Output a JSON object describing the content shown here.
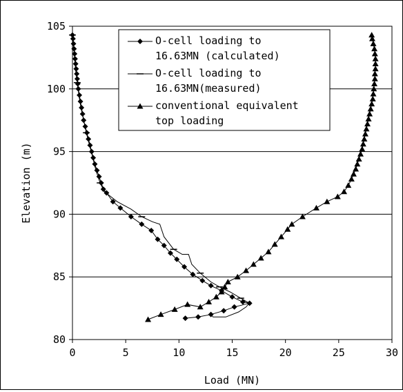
{
  "chart_data": {
    "type": "line",
    "xlabel": "Load (MN)",
    "ylabel": "Elevation (m)",
    "xlim": [
      0,
      30
    ],
    "ylim": [
      80,
      105
    ],
    "xticks": [
      "0",
      "5",
      "10",
      "15",
      "20",
      "25",
      "30"
    ],
    "yticks": [
      "80",
      "85",
      "90",
      "95",
      "100",
      "105"
    ],
    "grid": "horizontal",
    "legend_position": "top-center",
    "series": [
      {
        "name_lines": [
          "O-cell loading to",
          "16.63MN (calculated)"
        ],
        "marker": "diamond",
        "points": [
          [
            0.0,
            104.3
          ],
          [
            0.05,
            104.0
          ],
          [
            0.1,
            103.6
          ],
          [
            0.15,
            103.2
          ],
          [
            0.2,
            102.8
          ],
          [
            0.25,
            102.4
          ],
          [
            0.3,
            102.0
          ],
          [
            0.35,
            101.6
          ],
          [
            0.4,
            101.2
          ],
          [
            0.45,
            100.8
          ],
          [
            0.5,
            100.4
          ],
          [
            0.55,
            100.0
          ],
          [
            0.65,
            99.5
          ],
          [
            0.75,
            99.0
          ],
          [
            0.85,
            98.5
          ],
          [
            0.95,
            98.0
          ],
          [
            1.05,
            97.5
          ],
          [
            1.2,
            97.0
          ],
          [
            1.35,
            96.5
          ],
          [
            1.5,
            96.0
          ],
          [
            1.65,
            95.5
          ],
          [
            1.8,
            95.0
          ],
          [
            1.95,
            94.5
          ],
          [
            2.1,
            94.0
          ],
          [
            2.3,
            93.5
          ],
          [
            2.5,
            93.0
          ],
          [
            2.7,
            92.5
          ],
          [
            2.9,
            92.0
          ],
          [
            3.2,
            91.7
          ],
          [
            3.8,
            91.0
          ],
          [
            4.5,
            90.5
          ],
          [
            5.5,
            89.8
          ],
          [
            6.5,
            89.2
          ],
          [
            7.4,
            88.7
          ],
          [
            8.0,
            88.0
          ],
          [
            8.6,
            87.5
          ],
          [
            9.2,
            86.9
          ],
          [
            9.8,
            86.4
          ],
          [
            10.5,
            85.8
          ],
          [
            11.3,
            85.2
          ],
          [
            12.2,
            84.7
          ],
          [
            13.0,
            84.3
          ],
          [
            14.0,
            83.9
          ],
          [
            15.0,
            83.4
          ],
          [
            16.0,
            83.0
          ],
          [
            16.63,
            82.9
          ],
          [
            15.2,
            82.6
          ],
          [
            14.2,
            82.3
          ],
          [
            13.0,
            82.0
          ],
          [
            11.8,
            81.8
          ],
          [
            10.6,
            81.7
          ]
        ]
      },
      {
        "name_lines": [
          "O-cell loading to",
          "16.63MN(measured)"
        ],
        "marker": "dash",
        "points": [
          [
            0.0,
            104.3
          ],
          [
            0.1,
            103.5
          ],
          [
            0.2,
            102.5
          ],
          [
            0.3,
            101.5
          ],
          [
            0.45,
            100.5
          ],
          [
            0.6,
            99.5
          ],
          [
            0.8,
            98.5
          ],
          [
            1.05,
            97.5
          ],
          [
            1.3,
            96.5
          ],
          [
            1.6,
            95.5
          ],
          [
            1.85,
            94.7
          ],
          [
            2.2,
            93.5
          ],
          [
            2.6,
            92.5
          ],
          [
            3.0,
            91.8
          ],
          [
            4.2,
            91.0
          ],
          [
            5.5,
            90.4
          ],
          [
            6.5,
            89.8
          ],
          [
            7.5,
            89.4
          ],
          [
            8.2,
            89.2
          ],
          [
            8.6,
            88.2
          ],
          [
            9.5,
            87.2
          ],
          [
            10.3,
            86.8
          ],
          [
            10.9,
            86.8
          ],
          [
            11.2,
            86.0
          ],
          [
            12.0,
            85.3
          ],
          [
            13.0,
            84.6
          ],
          [
            13.8,
            84.2
          ],
          [
            14.8,
            83.8
          ],
          [
            15.8,
            83.3
          ],
          [
            16.6,
            82.9
          ],
          [
            16.3,
            82.6
          ],
          [
            15.6,
            82.2
          ],
          [
            14.4,
            81.8
          ],
          [
            13.2,
            81.8
          ],
          [
            13.0,
            82.0
          ]
        ]
      },
      {
        "name_lines": [
          "conventional equivalent",
          "top loading"
        ],
        "marker": "triangle",
        "points": [
          [
            28.1,
            104.3
          ],
          [
            28.15,
            104.0
          ],
          [
            28.25,
            103.6
          ],
          [
            28.35,
            103.2
          ],
          [
            28.4,
            102.8
          ],
          [
            28.45,
            102.4
          ],
          [
            28.45,
            102.0
          ],
          [
            28.45,
            101.6
          ],
          [
            28.4,
            101.2
          ],
          [
            28.4,
            100.8
          ],
          [
            28.35,
            100.4
          ],
          [
            28.3,
            100.0
          ],
          [
            28.25,
            99.6
          ],
          [
            28.2,
            99.2
          ],
          [
            28.1,
            98.8
          ],
          [
            28.0,
            98.4
          ],
          [
            27.9,
            98.0
          ],
          [
            27.8,
            97.6
          ],
          [
            27.7,
            97.2
          ],
          [
            27.6,
            96.8
          ],
          [
            27.5,
            96.4
          ],
          [
            27.4,
            96.0
          ],
          [
            27.3,
            95.6
          ],
          [
            27.2,
            95.2
          ],
          [
            27.05,
            94.8
          ],
          [
            26.9,
            94.4
          ],
          [
            26.75,
            94.0
          ],
          [
            26.6,
            93.6
          ],
          [
            26.4,
            93.2
          ],
          [
            26.2,
            92.8
          ],
          [
            25.9,
            92.3
          ],
          [
            25.5,
            91.8
          ],
          [
            24.9,
            91.4
          ],
          [
            23.9,
            91.0
          ],
          [
            22.9,
            90.5
          ],
          [
            21.6,
            89.8
          ],
          [
            20.6,
            89.2
          ],
          [
            20.2,
            88.8
          ],
          [
            19.6,
            88.2
          ],
          [
            19.0,
            87.6
          ],
          [
            18.4,
            87.0
          ],
          [
            17.7,
            86.5
          ],
          [
            17.0,
            86.0
          ],
          [
            16.3,
            85.5
          ],
          [
            15.5,
            85.0
          ],
          [
            14.6,
            84.6
          ],
          [
            14.3,
            84.2
          ],
          [
            14.0,
            83.8
          ],
          [
            13.5,
            83.4
          ],
          [
            12.8,
            83.0
          ],
          [
            12.0,
            82.6
          ],
          [
            10.8,
            82.8
          ],
          [
            9.6,
            82.4
          ],
          [
            8.3,
            82.0
          ],
          [
            7.1,
            81.6
          ]
        ]
      }
    ]
  }
}
